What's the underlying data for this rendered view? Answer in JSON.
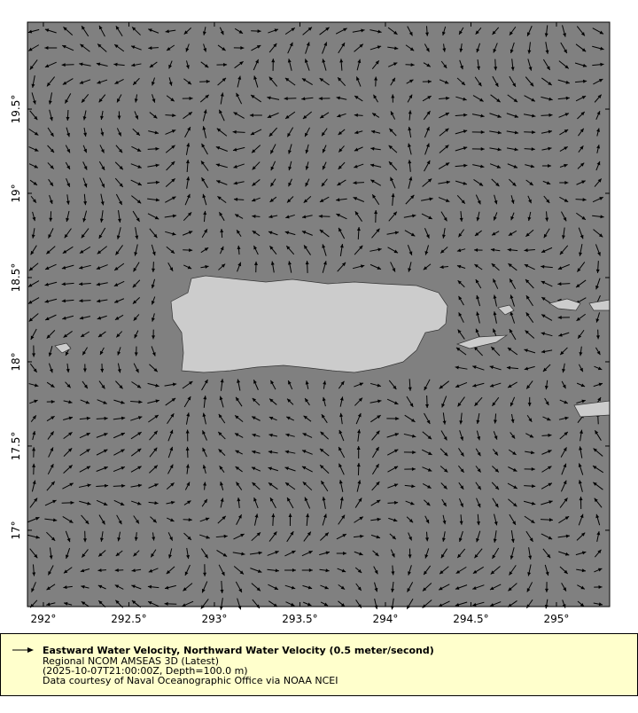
{
  "map": {
    "xlim": [
      291.907,
      295.311
    ],
    "ylim": [
      16.547,
      20.016
    ],
    "xticks": [
      {
        "value": 292,
        "label": "292°"
      },
      {
        "value": 292.5,
        "label": "292.5°"
      },
      {
        "value": 293,
        "label": "293°"
      },
      {
        "value": 293.5,
        "label": "293.5°"
      },
      {
        "value": 294,
        "label": "294°"
      },
      {
        "value": 294.5,
        "label": "294.5°"
      },
      {
        "value": 295,
        "label": "295°"
      }
    ],
    "yticks": [
      {
        "value": 17,
        "label": "17°"
      },
      {
        "value": 17.5,
        "label": "17.5°"
      },
      {
        "value": 18,
        "label": "18°"
      },
      {
        "value": 18.5,
        "label": "18.5°"
      },
      {
        "value": 19,
        "label": "19°"
      },
      {
        "value": 19.5,
        "label": "19.5°"
      }
    ],
    "legend": {
      "title": "Eastward Water Velocity, Northward Water Velocity (0.5 meter/second)",
      "lines": [
        "Regional NCOM AMSEAS 3D (Latest)",
        "(2025-10-07T21:00:00Z, Depth=100.0 m)",
        "Data courtesy of Naval Oceanographic Office via NOAA NCEI"
      ]
    }
  }
}
